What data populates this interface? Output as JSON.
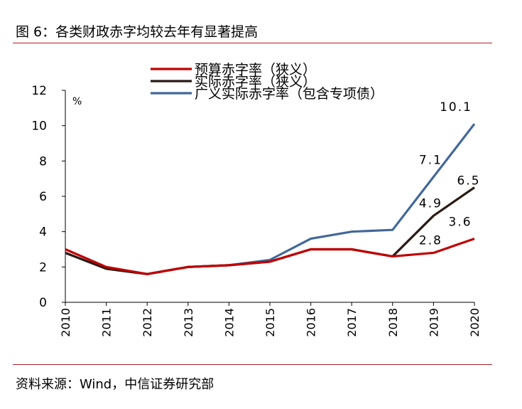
{
  "figure": {
    "title": "图 6：各类财政赤字均较去年有显著提高",
    "source": "资料来源：Wind，中信证券研究部"
  },
  "chart_data": {
    "type": "line",
    "title": "",
    "xlabel": "",
    "ylabel": "%",
    "ylim": [
      0,
      12
    ],
    "yticks": [
      0,
      2,
      4,
      6,
      8,
      10,
      12
    ],
    "grid": false,
    "legend_position": "top",
    "x": [
      "2010",
      "2011",
      "2012",
      "2013",
      "2014",
      "2015",
      "2016",
      "2017",
      "2018",
      "2019",
      "2020"
    ],
    "series": [
      {
        "name": "预算赤字率（狭义）",
        "color": "#c00000",
        "values": [
          3.0,
          2.0,
          1.6,
          2.0,
          2.1,
          2.3,
          3.0,
          3.0,
          2.6,
          2.8,
          3.6
        ]
      },
      {
        "name": "实际赤字率（狭义）",
        "color": "#2b1a14",
        "values": [
          2.8,
          1.9,
          1.6,
          2.0,
          2.1,
          2.3,
          3.0,
          3.0,
          2.6,
          4.9,
          6.5
        ]
      },
      {
        "name": "广义实际赤字率（包含专项债）",
        "color": "#426899",
        "values": [
          2.8,
          1.9,
          1.6,
          2.0,
          2.1,
          2.4,
          3.6,
          4.0,
          4.1,
          7.1,
          10.1
        ]
      }
    ],
    "annotations": [
      {
        "series": 0,
        "index": 9,
        "text": "2.8"
      },
      {
        "series": 0,
        "index": 10,
        "text": "3.6"
      },
      {
        "series": 1,
        "index": 9,
        "text": "4.9"
      },
      {
        "series": 1,
        "index": 10,
        "text": "6.5"
      },
      {
        "series": 2,
        "index": 9,
        "text": "7.1"
      },
      {
        "series": 2,
        "index": 10,
        "text": "10.1"
      }
    ]
  }
}
